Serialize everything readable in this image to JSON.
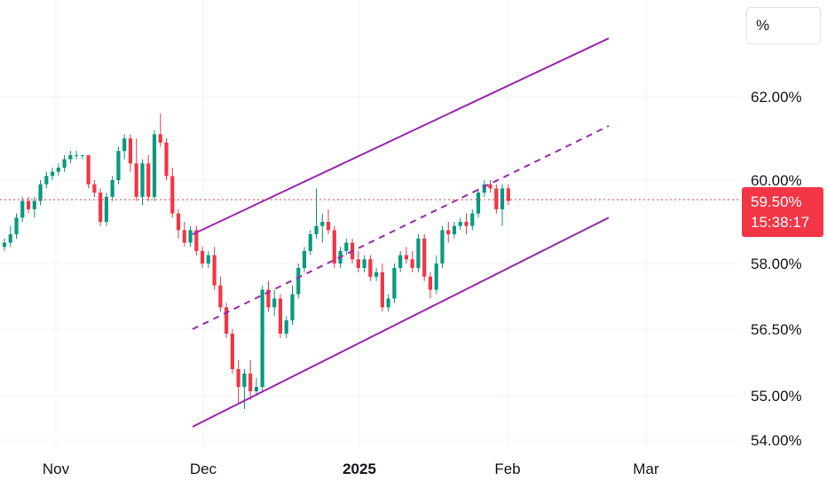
{
  "chart_data": {
    "type": "candlestick",
    "y_unit": "%",
    "y_ticks": [
      "62.00%",
      "60.00%",
      "58.00%",
      "56.50%",
      "55.00%",
      "54.00%"
    ],
    "x_ticks": [
      "Nov",
      "Dec",
      "2025",
      "Feb",
      "Mar"
    ],
    "last_price": "59.50%",
    "countdown": "15:38:17",
    "colors": {
      "up": "#089981",
      "down": "#f23645",
      "channel": "#9c27b0",
      "price_line": "#f23645"
    },
    "grid": true,
    "channel": {
      "upper": {
        "start": [
          "Dec 01",
          58.7
        ],
        "end": [
          "Feb 20",
          63.4
        ]
      },
      "middle": {
        "start": [
          "Dec 01",
          56.5
        ],
        "end": [
          "Feb 20",
          61.3
        ]
      },
      "lower": {
        "start": [
          "Dec 01",
          54.3
        ],
        "end": [
          "Feb 20",
          59.1
        ]
      }
    },
    "candles": [
      [
        58.4,
        58.6,
        58.3,
        58.5
      ],
      [
        58.5,
        58.9,
        58.4,
        58.7
      ],
      [
        58.7,
        59.2,
        58.6,
        59.1
      ],
      [
        59.1,
        59.6,
        59.0,
        59.5
      ],
      [
        59.5,
        59.6,
        59.2,
        59.3
      ],
      [
        59.3,
        59.6,
        59.1,
        59.5
      ],
      [
        59.5,
        60.0,
        59.4,
        59.9
      ],
      [
        59.9,
        60.2,
        59.8,
        60.1
      ],
      [
        60.1,
        60.3,
        60.0,
        60.2
      ],
      [
        60.2,
        60.4,
        60.1,
        60.3
      ],
      [
        60.3,
        60.6,
        60.2,
        60.5
      ],
      [
        60.5,
        60.7,
        60.4,
        60.6
      ],
      [
        60.6,
        60.7,
        60.5,
        60.6
      ],
      [
        60.6,
        60.6,
        60.5,
        60.6
      ],
      [
        60.6,
        60.6,
        59.8,
        59.9
      ],
      [
        59.9,
        60.0,
        59.6,
        59.7
      ],
      [
        59.7,
        59.8,
        58.9,
        59.0
      ],
      [
        59.0,
        59.7,
        58.9,
        59.6
      ],
      [
        59.6,
        60.1,
        59.5,
        60.0
      ],
      [
        60.0,
        60.8,
        59.9,
        60.7
      ],
      [
        60.7,
        61.1,
        60.5,
        61.0
      ],
      [
        61.0,
        61.1,
        60.2,
        60.4
      ],
      [
        60.4,
        61.0,
        59.5,
        59.6
      ],
      [
        59.6,
        60.5,
        59.4,
        60.4
      ],
      [
        60.4,
        60.6,
        59.5,
        59.6
      ],
      [
        59.6,
        61.2,
        59.5,
        61.1
      ],
      [
        61.1,
        61.6,
        60.8,
        60.9
      ],
      [
        60.9,
        61.0,
        60.0,
        60.1
      ],
      [
        60.1,
        60.3,
        59.1,
        59.2
      ],
      [
        59.2,
        59.3,
        58.6,
        58.8
      ],
      [
        58.8,
        59.0,
        58.4,
        58.5
      ],
      [
        58.5,
        58.9,
        58.4,
        58.8
      ],
      [
        58.8,
        58.9,
        58.2,
        58.3
      ],
      [
        58.3,
        58.4,
        57.9,
        58.0
      ],
      [
        58.0,
        58.3,
        57.9,
        58.2
      ],
      [
        58.2,
        58.4,
        57.4,
        57.5
      ],
      [
        57.5,
        57.7,
        56.9,
        57.0
      ],
      [
        57.0,
        57.1,
        56.3,
        56.4
      ],
      [
        56.4,
        56.5,
        55.5,
        55.6
      ],
      [
        55.6,
        55.8,
        54.8,
        55.2
      ],
      [
        55.2,
        55.6,
        54.7,
        55.5
      ],
      [
        55.5,
        55.8,
        54.9,
        55.1
      ],
      [
        55.1,
        55.4,
        55.0,
        55.2
      ],
      [
        55.2,
        57.5,
        55.1,
        57.4
      ],
      [
        57.4,
        57.6,
        56.9,
        57.0
      ],
      [
        57.0,
        57.4,
        56.8,
        57.2
      ],
      [
        57.2,
        57.3,
        56.3,
        56.4
      ],
      [
        56.4,
        56.8,
        56.3,
        56.7
      ],
      [
        56.7,
        57.5,
        56.6,
        57.3
      ],
      [
        57.3,
        58.0,
        57.2,
        57.9
      ],
      [
        57.9,
        58.4,
        57.8,
        58.3
      ],
      [
        58.3,
        58.8,
        58.2,
        58.7
      ],
      [
        58.7,
        59.8,
        58.6,
        58.9
      ],
      [
        58.9,
        59.2,
        58.5,
        59.0
      ],
      [
        59.0,
        59.3,
        58.7,
        58.8
      ],
      [
        58.8,
        58.9,
        57.9,
        58.0
      ],
      [
        58.0,
        58.4,
        57.9,
        58.3
      ],
      [
        58.3,
        58.6,
        58.2,
        58.5
      ],
      [
        58.5,
        58.6,
        58.0,
        58.1
      ],
      [
        58.1,
        58.3,
        57.8,
        57.9
      ],
      [
        57.9,
        58.2,
        57.8,
        58.1
      ],
      [
        58.1,
        58.2,
        57.6,
        57.7
      ],
      [
        57.7,
        57.9,
        57.6,
        57.8
      ],
      [
        57.8,
        58.0,
        56.9,
        57.0
      ],
      [
        57.0,
        57.3,
        56.9,
        57.2
      ],
      [
        57.2,
        58.0,
        57.1,
        57.9
      ],
      [
        57.9,
        58.3,
        57.8,
        58.2
      ],
      [
        58.2,
        58.4,
        58.0,
        58.1
      ],
      [
        58.1,
        58.3,
        57.8,
        57.9
      ],
      [
        57.9,
        58.7,
        57.8,
        58.6
      ],
      [
        58.6,
        58.7,
        57.6,
        57.7
      ],
      [
        57.7,
        57.8,
        57.2,
        57.4
      ],
      [
        57.4,
        58.2,
        57.3,
        58.0
      ],
      [
        58.0,
        58.9,
        57.9,
        58.8
      ],
      [
        58.8,
        59.0,
        58.5,
        58.7
      ],
      [
        58.7,
        59.0,
        58.6,
        58.9
      ],
      [
        58.9,
        59.1,
        58.8,
        59.0
      ],
      [
        59.0,
        59.2,
        58.7,
        58.9
      ],
      [
        58.9,
        59.3,
        58.8,
        59.2
      ],
      [
        59.2,
        59.8,
        59.1,
        59.7
      ],
      [
        59.7,
        60.0,
        59.6,
        59.9
      ],
      [
        59.9,
        60.0,
        59.7,
        59.8
      ],
      [
        59.8,
        59.9,
        59.2,
        59.3
      ],
      [
        59.3,
        59.9,
        58.9,
        59.8
      ],
      [
        59.8,
        59.9,
        59.4,
        59.5
      ]
    ]
  }
}
